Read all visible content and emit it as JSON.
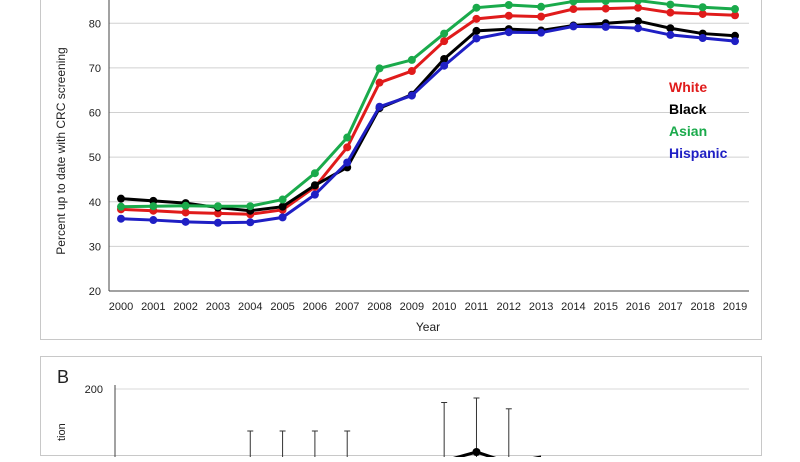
{
  "chart_data": [
    {
      "panel": "A",
      "type": "line",
      "title": "",
      "xlabel": "Year",
      "ylabel": "Percent up to date with CRC screening",
      "ylim": [
        20,
        85
      ],
      "yticks": [
        20,
        30,
        40,
        50,
        60,
        70,
        80
      ],
      "grid": true,
      "legend_position": "right",
      "categories": [
        "2000",
        "2001",
        "2002",
        "2003",
        "2004",
        "2005",
        "2006",
        "2007",
        "2008",
        "2009",
        "2010",
        "2011",
        "2012",
        "2013",
        "2014",
        "2015",
        "2016",
        "2017",
        "2018",
        "2019"
      ],
      "series": [
        {
          "name": "White",
          "color": "#e01b1b",
          "values": [
            38.3,
            38.0,
            37.6,
            37.4,
            37.2,
            38.2,
            43.3,
            52.2,
            66.7,
            69.3,
            76.0,
            81.0,
            81.7,
            81.5,
            83.2,
            83.3,
            83.5,
            82.4,
            82.1,
            81.8
          ]
        },
        {
          "name": "Black",
          "color": "#000000",
          "values": [
            40.7,
            40.2,
            39.7,
            38.7,
            38.0,
            38.9,
            43.7,
            47.7,
            61.0,
            64.0,
            72.0,
            78.3,
            78.7,
            78.4,
            79.5,
            80.0,
            80.5,
            78.9,
            77.7,
            77.2
          ]
        },
        {
          "name": "Asian",
          "color": "#1aaa4b",
          "values": [
            38.9,
            39.0,
            39.1,
            39.0,
            39.0,
            40.5,
            46.4,
            54.4,
            69.9,
            71.8,
            77.7,
            83.5,
            84.1,
            83.7,
            84.9,
            85.0,
            85.1,
            84.2,
            83.6,
            83.2
          ]
        },
        {
          "name": "Hispanic",
          "color": "#1f1fc4",
          "values": [
            36.2,
            35.9,
            35.5,
            35.3,
            35.4,
            36.5,
            41.6,
            48.8,
            61.3,
            63.8,
            70.5,
            76.6,
            78.0,
            77.9,
            79.3,
            79.2,
            78.9,
            77.4,
            76.7,
            76.0
          ]
        }
      ]
    },
    {
      "panel": "B",
      "type": "line",
      "yticks": [
        200
      ],
      "visible_points": [
        {
          "x_pos": 10,
          "value": 120,
          "err_top": 185
        },
        {
          "x_pos": 11,
          "value": 130,
          "err_top": 190
        },
        {
          "x_pos": 12,
          "value": 118,
          "err_top": 178
        }
      ]
    }
  ],
  "labels": {
    "panelA_letter": "",
    "panelB_letter": "B",
    "panelB_ylabel": "tion"
  }
}
